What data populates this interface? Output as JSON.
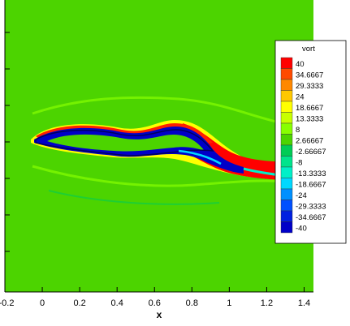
{
  "chart_data": {
    "type": "heatmap",
    "xlabel": "x",
    "x_ticks": [
      "-0.2",
      "0",
      "0.2",
      "0.4",
      "0.6",
      "0.8",
      "1",
      "1.2",
      "1.4"
    ],
    "x_tick_values": [
      -0.2,
      0,
      0.2,
      0.4,
      0.6,
      0.8,
      1,
      1.2,
      1.4
    ],
    "xlim": [
      -0.2,
      1.45
    ],
    "legend": {
      "title": "vort",
      "placement": "right",
      "levels": [
        "40",
        "34.6667",
        "29.3333",
        "24",
        "18.6667",
        "13.3333",
        "8",
        "2.66667",
        "-2.66667",
        "-8",
        "-13.3333",
        "-18.6667",
        "-24",
        "-29.3333",
        "-34.6667",
        "-40"
      ],
      "colors": [
        "#ff0000",
        "#ff4a00",
        "#ff8800",
        "#ffc800",
        "#ffff00",
        "#c8ff00",
        "#88ff00",
        "#4cd400",
        "#00cc55",
        "#00e48c",
        "#00f0c8",
        "#00d8ff",
        "#0090ff",
        "#0050ff",
        "#0020e0",
        "#0000c8"
      ]
    },
    "field_background_color": "#4cd400"
  }
}
